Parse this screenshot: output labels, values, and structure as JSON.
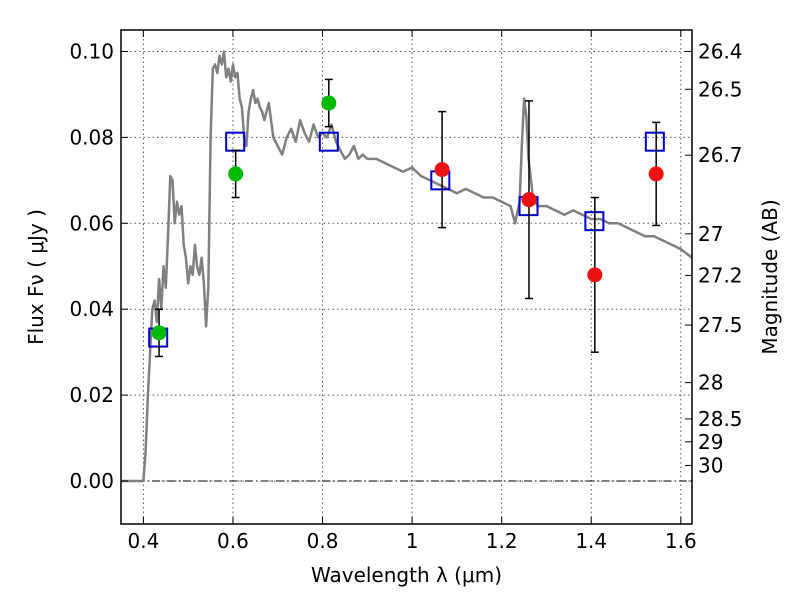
{
  "chart_data": {
    "type": "scatter",
    "title": "",
    "xlabel": "Wavelength  λ (μm)",
    "ylabel": "Flux  Fν  ( μJy )",
    "y2label": "Magnitude (AB)",
    "xlim": [
      0.35,
      1.625
    ],
    "ylim": [
      -0.01,
      0.105
    ],
    "grid": true,
    "x_ticks": [
      0.4,
      0.6,
      0.8,
      1.0,
      1.2,
      1.4,
      1.6
    ],
    "x_tick_labels": [
      "0.4",
      "0.6",
      "0.8",
      "1",
      "1.2",
      "1.4",
      "1.6"
    ],
    "y_ticks": [
      0.0,
      0.02,
      0.04,
      0.06,
      0.08,
      0.1
    ],
    "y_tick_labels": [
      "0.00",
      "0.02",
      "0.04",
      "0.06",
      "0.08",
      "0.10"
    ],
    "mag_ticks": [
      26.4,
      26.5,
      26.7,
      27.0,
      27.2,
      27.5,
      28.0,
      28.5,
      29.0,
      30.0
    ],
    "mag_tick_labels": [
      "26.4",
      "26.5",
      "26.7",
      "27",
      "27.2",
      "27.5",
      "28",
      "28.5",
      "29",
      "30"
    ],
    "zero_line": true,
    "colors": {
      "spectrum": "#808080",
      "model": "#0000cc",
      "optical": "#00bb00",
      "infrared": "#ee1111",
      "errorbar": "#000000"
    },
    "series": [
      {
        "kind": "spectrum",
        "x": [
          0.35,
          0.395,
          0.4,
          0.405,
          0.41,
          0.415,
          0.42,
          0.425,
          0.43,
          0.435,
          0.44,
          0.445,
          0.45,
          0.455,
          0.46,
          0.465,
          0.47,
          0.475,
          0.48,
          0.485,
          0.49,
          0.495,
          0.5,
          0.505,
          0.51,
          0.515,
          0.52,
          0.525,
          0.53,
          0.535,
          0.54,
          0.545,
          0.55,
          0.555,
          0.56,
          0.565,
          0.57,
          0.575,
          0.58,
          0.585,
          0.59,
          0.595,
          0.6,
          0.605,
          0.61,
          0.615,
          0.62,
          0.625,
          0.63,
          0.635,
          0.64,
          0.645,
          0.65,
          0.655,
          0.66,
          0.665,
          0.67,
          0.68,
          0.69,
          0.7,
          0.71,
          0.72,
          0.73,
          0.74,
          0.75,
          0.76,
          0.77,
          0.78,
          0.79,
          0.8,
          0.81,
          0.82,
          0.83,
          0.84,
          0.85,
          0.86,
          0.87,
          0.88,
          0.89,
          0.9,
          0.92,
          0.94,
          0.96,
          0.98,
          1.0,
          1.02,
          1.04,
          1.06,
          1.08,
          1.1,
          1.12,
          1.14,
          1.16,
          1.18,
          1.2,
          1.22,
          1.23,
          1.24,
          1.245,
          1.25,
          1.255,
          1.26,
          1.27,
          1.28,
          1.3,
          1.32,
          1.34,
          1.36,
          1.38,
          1.4,
          1.42,
          1.44,
          1.46,
          1.48,
          1.5,
          1.52,
          1.54,
          1.56,
          1.58,
          1.6,
          1.625
        ],
        "y": [
          0.0,
          0.0,
          0.0,
          0.007,
          0.02,
          0.03,
          0.04,
          0.042,
          0.037,
          0.047,
          0.04,
          0.05,
          0.045,
          0.057,
          0.071,
          0.07,
          0.06,
          0.065,
          0.062,
          0.064,
          0.055,
          0.052,
          0.046,
          0.05,
          0.048,
          0.055,
          0.05,
          0.048,
          0.052,
          0.046,
          0.036,
          0.045,
          0.08,
          0.096,
          0.097,
          0.095,
          0.099,
          0.097,
          0.1,
          0.094,
          0.096,
          0.093,
          0.097,
          0.094,
          0.095,
          0.089,
          0.087,
          0.08,
          0.078,
          0.086,
          0.089,
          0.091,
          0.088,
          0.089,
          0.087,
          0.086,
          0.084,
          0.088,
          0.08,
          0.078,
          0.076,
          0.08,
          0.082,
          0.079,
          0.084,
          0.081,
          0.079,
          0.083,
          0.08,
          0.081,
          0.08,
          0.083,
          0.079,
          0.077,
          0.075,
          0.076,
          0.078,
          0.075,
          0.076,
          0.075,
          0.075,
          0.074,
          0.073,
          0.072,
          0.073,
          0.071,
          0.07,
          0.069,
          0.068,
          0.067,
          0.068,
          0.067,
          0.066,
          0.066,
          0.065,
          0.064,
          0.06,
          0.065,
          0.078,
          0.089,
          0.085,
          0.075,
          0.066,
          0.064,
          0.064,
          0.063,
          0.062,
          0.063,
          0.062,
          0.061,
          0.061,
          0.06,
          0.06,
          0.059,
          0.058,
          0.057,
          0.057,
          0.056,
          0.055,
          0.054,
          0.052
        ]
      },
      {
        "kind": "model",
        "x": [
          0.433,
          0.605,
          0.814,
          1.063,
          1.26,
          1.407,
          1.542
        ],
        "y": [
          0.0334,
          0.079,
          0.079,
          0.07,
          0.064,
          0.0605,
          0.079
        ]
      },
      {
        "kind": "optical",
        "x": [
          0.435,
          0.606,
          0.814
        ],
        "y": [
          0.0345,
          0.0715,
          0.088
        ],
        "yerr": [
          0.0055,
          0.0055,
          0.0055
        ]
      },
      {
        "kind": "infrared",
        "x": [
          1.067,
          1.261,
          1.408,
          1.545
        ],
        "y": [
          0.0725,
          0.0655,
          0.048,
          0.0715
        ],
        "yerr": [
          0.0135,
          0.023,
          0.018,
          0.012
        ]
      }
    ]
  }
}
